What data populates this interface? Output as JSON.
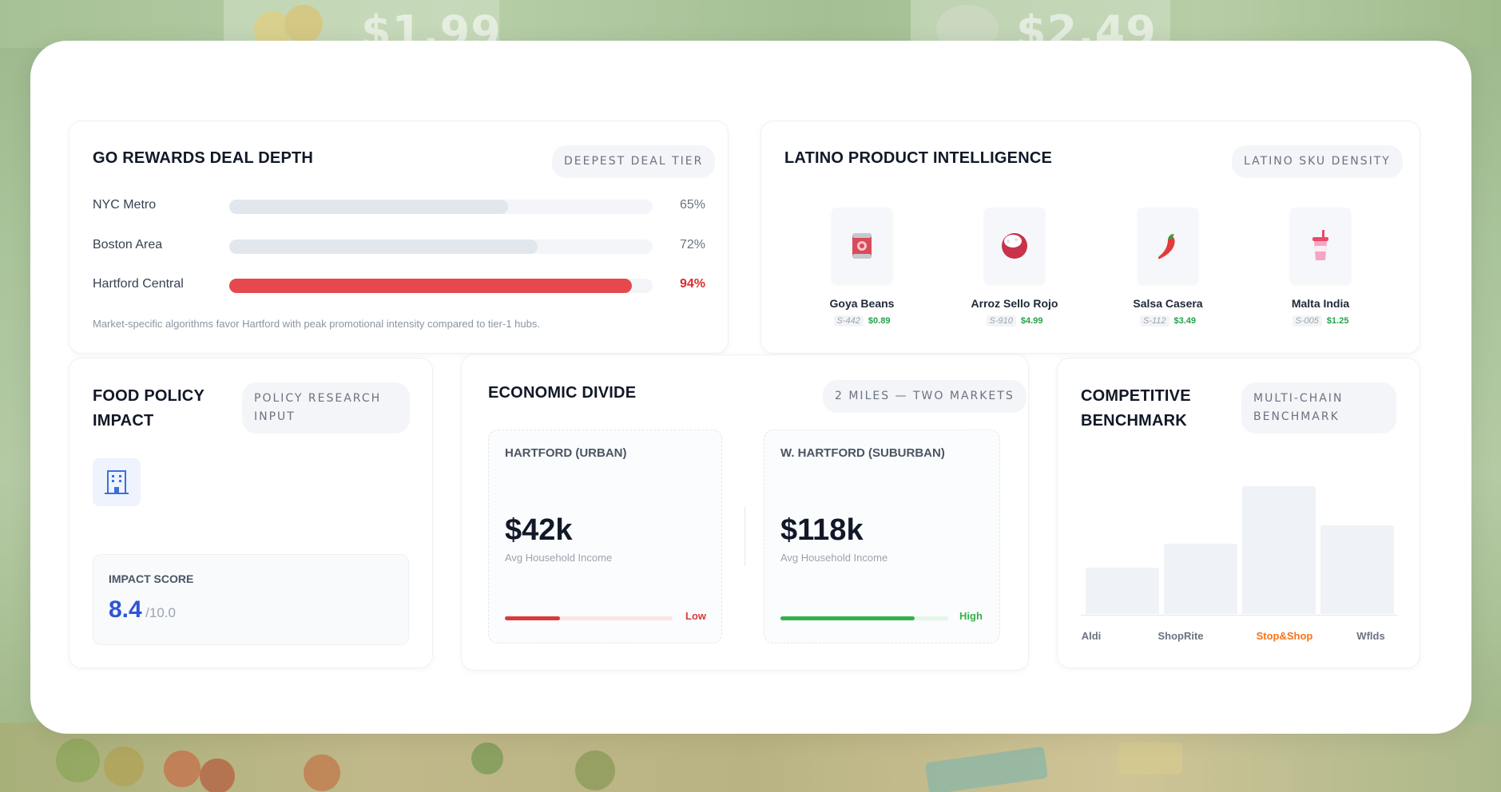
{
  "background": {
    "price_left": "$1.99",
    "price_right": "$2.49"
  },
  "deal_depth": {
    "title": "GO REWARDS DEAL DEPTH",
    "badge": "DEEPEST DEAL TIER",
    "rows": [
      {
        "label": "NYC Metro",
        "pct_text": "65%",
        "value": 65
      },
      {
        "label": "Boston Area",
        "pct_text": "72%",
        "value": 72
      },
      {
        "label": "Hartford Central",
        "pct_text": "94%",
        "value": 94
      }
    ],
    "footnote": "Market-specific algorithms favor Hartford with peak promotional intensity compared to tier-1 hubs."
  },
  "latino": {
    "title": "LATINO PRODUCT INTELLIGENCE",
    "badge": "LATINO SKU DENSITY",
    "products": [
      {
        "name": "Goya Beans",
        "sku": "S-442",
        "price": "$0.89",
        "icon": "can-icon"
      },
      {
        "name": "Arroz Sello Rojo",
        "sku": "S-910",
        "price": "$4.99",
        "icon": "rice-bowl-icon"
      },
      {
        "name": "Salsa Casera",
        "sku": "S-112",
        "price": "$3.49",
        "icon": "chili-pepper-icon"
      },
      {
        "name": "Malta India",
        "sku": "S-005",
        "price": "$1.25",
        "icon": "soda-cup-icon"
      }
    ]
  },
  "policy": {
    "title_line1": "FOOD POLICY",
    "title_line2": "IMPACT",
    "badge_line1": "POLICY RESEARCH",
    "badge_line2": "INPUT",
    "icon": "building-icon",
    "score_label": "IMPACT SCORE",
    "score_value": "8.4",
    "score_max": "/10.0"
  },
  "divide": {
    "title": "ECONOMIC DIVIDE",
    "badge": "2 MILES — TWO MARKETS",
    "left": {
      "title": "HARTFORD (URBAN)",
      "value": "$42k",
      "caption": "Avg Household Income",
      "level": "Low",
      "fill": 0.33
    },
    "right": {
      "title": "W. HARTFORD (SUBURBAN)",
      "value": "$118k",
      "caption": "Avg Household Income",
      "level": "High",
      "fill": 0.8
    }
  },
  "benchmark": {
    "title_line1": "COMPETITIVE",
    "title_line2": "BENCHMARK",
    "badge_line1": "MULTI-CHAIN",
    "badge_line2": "BENCHMARK",
    "chart_data": {
      "type": "bar",
      "categories": [
        "Aldi",
        "ShopRite",
        "Stop&Shop",
        "Wflds"
      ],
      "values": [
        43,
        65,
        118,
        82
      ],
      "highlight": "Stop&Shop",
      "title": "",
      "xlabel": "",
      "ylabel": ""
    }
  },
  "colors": {
    "accent_red": "#e5484d",
    "accent_green": "#22a34a",
    "accent_blue": "#2f55d4",
    "highlight_orange": "#f97316"
  }
}
